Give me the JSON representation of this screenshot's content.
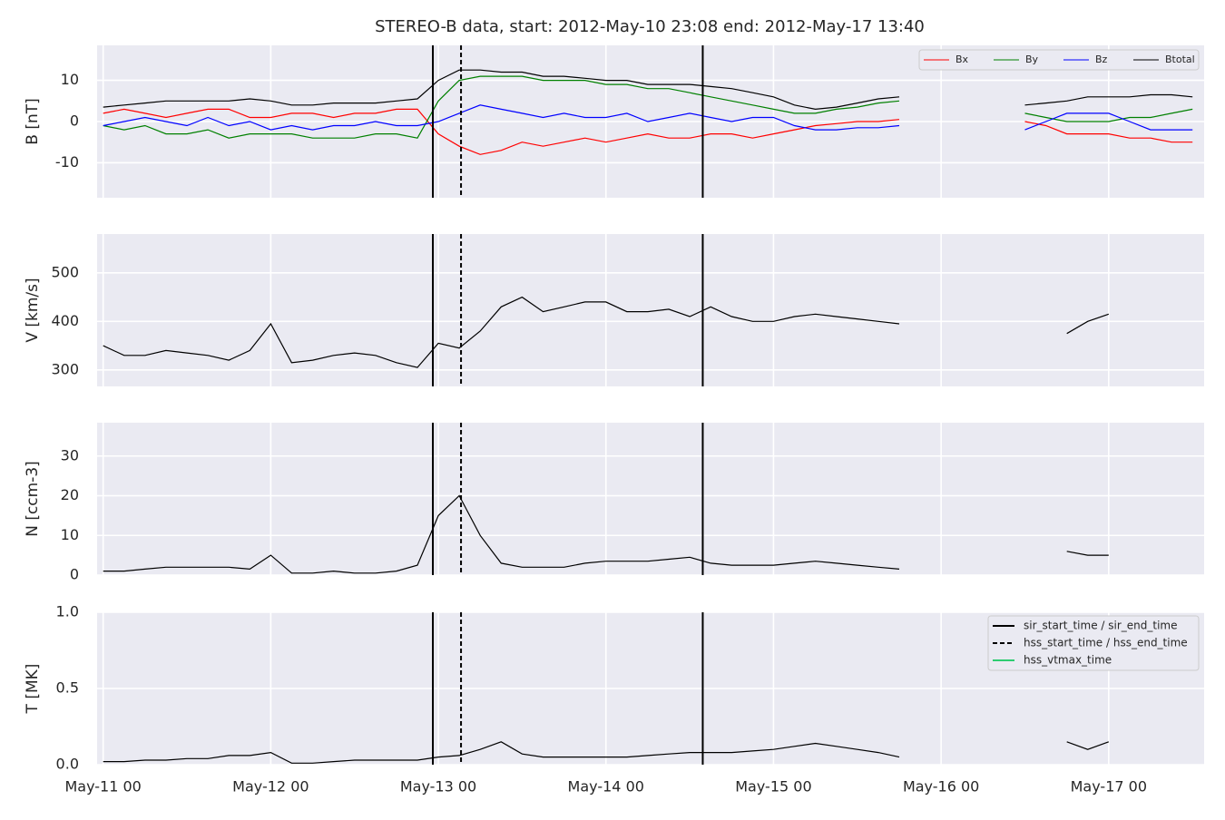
{
  "title": "STEREO-B data, start: 2012-May-10 23:08  end: 2012-May-17 13:40",
  "chart_data": [
    {
      "type": "line",
      "ylabel": "B [nT]",
      "xlim": [
        "2012-05-10T23:08",
        "2012-05-17T13:40"
      ],
      "ylim": [
        -18.5,
        18.5
      ],
      "yticks": [
        -10,
        0,
        10
      ],
      "grid": true,
      "legend": "upper right",
      "xticks": [
        "2012-05-11T00:00",
        "2012-05-12T00:00",
        "2012-05-13T00:00",
        "2012-05-14T00:00",
        "2012-05-15T00:00",
        "2012-05-16T00:00",
        "2012-05-17T00:00"
      ],
      "x": [
        "2012-05-11T00:00",
        "2012-05-11T03:00",
        "2012-05-11T06:00",
        "2012-05-11T09:00",
        "2012-05-11T12:00",
        "2012-05-11T15:00",
        "2012-05-11T18:00",
        "2012-05-11T21:00",
        "2012-05-12T00:00",
        "2012-05-12T03:00",
        "2012-05-12T06:00",
        "2012-05-12T09:00",
        "2012-05-12T12:00",
        "2012-05-12T15:00",
        "2012-05-12T18:00",
        "2012-05-12T21:00",
        "2012-05-13T00:00",
        "2012-05-13T03:00",
        "2012-05-13T06:00",
        "2012-05-13T09:00",
        "2012-05-13T12:00",
        "2012-05-13T15:00",
        "2012-05-13T18:00",
        "2012-05-13T21:00",
        "2012-05-14T00:00",
        "2012-05-14T03:00",
        "2012-05-14T06:00",
        "2012-05-14T09:00",
        "2012-05-14T12:00",
        "2012-05-14T15:00",
        "2012-05-14T18:00",
        "2012-05-14T21:00",
        "2012-05-15T00:00",
        "2012-05-15T03:00",
        "2012-05-15T06:00",
        "2012-05-15T09:00",
        "2012-05-15T12:00",
        "2012-05-15T15:00",
        "2012-05-15T18:00",
        "2012-05-15T21:00",
        "2012-05-16T00:00",
        "2012-05-16T03:00",
        "2012-05-16T06:00",
        "2012-05-16T09:00",
        "2012-05-16T12:00",
        "2012-05-16T15:00",
        "2012-05-16T18:00",
        "2012-05-16T21:00",
        "2012-05-17T00:00",
        "2012-05-17T03:00",
        "2012-05-17T06:00",
        "2012-05-17T09:00",
        "2012-05-17T12:00"
      ],
      "series": [
        {
          "name": "Bx",
          "color": "#ff0000",
          "values": [
            2,
            3,
            2,
            1,
            2,
            3,
            3,
            1,
            1,
            2,
            2,
            1,
            2,
            2,
            3,
            3,
            -3,
            -6,
            -8,
            -7,
            -5,
            -6,
            -5,
            -4,
            -5,
            -4,
            -3,
            -4,
            -4,
            -3,
            -3,
            -4,
            -3,
            -2,
            -1,
            -0.5,
            0,
            0,
            0.5,
            null,
            null,
            null,
            null,
            null,
            0,
            -1,
            -3,
            -3,
            -3,
            -4,
            -4,
            -5,
            -5
          ]
        },
        {
          "name": "By",
          "color": "#008000",
          "values": [
            -1,
            -2,
            -1,
            -3,
            -3,
            -2,
            -4,
            -3,
            -3,
            -3,
            -4,
            -4,
            -4,
            -3,
            -3,
            -4,
            5,
            10,
            11,
            11,
            11,
            10,
            10,
            10,
            9,
            9,
            8,
            8,
            7,
            6,
            5,
            4,
            3,
            2,
            2,
            3,
            3.5,
            4.5,
            5,
            null,
            null,
            null,
            null,
            null,
            2,
            1,
            0,
            0,
            0,
            1,
            1,
            2,
            3
          ]
        },
        {
          "name": "Bz",
          "color": "#0000ff",
          "values": [
            -1,
            0,
            1,
            0,
            -1,
            1,
            -1,
            0,
            -2,
            -1,
            -2,
            -1,
            -1,
            0,
            -1,
            -1,
            0,
            2,
            4,
            3,
            2,
            1,
            2,
            1,
            1,
            2,
            0,
            1,
            2,
            1,
            0,
            1,
            1,
            -1,
            -2,
            -2,
            -1.5,
            -1.5,
            -1,
            null,
            null,
            null,
            null,
            null,
            -2,
            0,
            2,
            2,
            2,
            0,
            -2,
            -2,
            -2
          ]
        },
        {
          "name": "Btotal",
          "color": "#000000",
          "values": [
            3.5,
            4,
            4.5,
            5,
            5,
            5,
            5,
            5.5,
            5,
            4,
            4,
            4.5,
            4.5,
            4.5,
            5,
            5.5,
            10,
            12.5,
            12.5,
            12,
            12,
            11,
            11,
            10.5,
            10,
            10,
            9,
            9,
            9,
            8.5,
            8,
            7,
            6,
            4,
            3,
            3.5,
            4.5,
            5.5,
            6,
            null,
            null,
            null,
            null,
            null,
            4,
            4.5,
            5,
            6,
            6,
            6,
            6.5,
            6.5,
            6
          ]
        }
      ]
    },
    {
      "type": "line",
      "ylabel": "V [km/s]",
      "xlim": [
        "2012-05-10T23:08",
        "2012-05-17T13:40"
      ],
      "ylim": [
        266,
        580
      ],
      "yticks": [
        300,
        400,
        500
      ],
      "grid": true,
      "xticks": [
        "2012-05-11T00:00",
        "2012-05-12T00:00",
        "2012-05-13T00:00",
        "2012-05-14T00:00",
        "2012-05-15T00:00",
        "2012-05-16T00:00",
        "2012-05-17T00:00"
      ],
      "x": [
        "2012-05-11T00:00",
        "2012-05-11T03:00",
        "2012-05-11T06:00",
        "2012-05-11T09:00",
        "2012-05-11T12:00",
        "2012-05-11T15:00",
        "2012-05-11T18:00",
        "2012-05-11T21:00",
        "2012-05-12T00:00",
        "2012-05-12T03:00",
        "2012-05-12T06:00",
        "2012-05-12T09:00",
        "2012-05-12T12:00",
        "2012-05-12T15:00",
        "2012-05-12T18:00",
        "2012-05-12T21:00",
        "2012-05-13T00:00",
        "2012-05-13T03:00",
        "2012-05-13T06:00",
        "2012-05-13T09:00",
        "2012-05-13T12:00",
        "2012-05-13T15:00",
        "2012-05-13T18:00",
        "2012-05-13T21:00",
        "2012-05-14T00:00",
        "2012-05-14T03:00",
        "2012-05-14T06:00",
        "2012-05-14T09:00",
        "2012-05-14T12:00",
        "2012-05-14T15:00",
        "2012-05-14T18:00",
        "2012-05-14T21:00",
        "2012-05-15T00:00",
        "2012-05-15T03:00",
        "2012-05-15T06:00",
        "2012-05-15T09:00",
        "2012-05-15T12:00",
        "2012-05-15T15:00",
        "2012-05-15T18:00",
        "2012-05-15T21:00",
        "2012-05-16T00:00",
        "2012-05-16T03:00",
        "2012-05-16T06:00",
        "2012-05-16T09:00",
        "2012-05-16T12:00",
        "2012-05-16T15:00",
        "2012-05-16T18:00",
        "2012-05-16T21:00",
        "2012-05-17T00:00",
        "2012-05-17T03:00",
        "2012-05-17T06:00",
        "2012-05-17T09:00",
        "2012-05-17T12:00"
      ],
      "series": [
        {
          "color": "#000000",
          "values": [
            350,
            330,
            330,
            340,
            335,
            330,
            320,
            340,
            395,
            315,
            320,
            330,
            335,
            330,
            315,
            305,
            355,
            345,
            380,
            430,
            450,
            420,
            430,
            440,
            440,
            420,
            420,
            425,
            410,
            430,
            410,
            400,
            400,
            410,
            415,
            410,
            405,
            400,
            395,
            null,
            null,
            null,
            null,
            null,
            null,
            null,
            375,
            400,
            415,
            null,
            null,
            null,
            null
          ]
        }
      ]
    },
    {
      "type": "line",
      "ylabel": "N [ccm-3]",
      "xlim": [
        "2012-05-10T23:08",
        "2012-05-17T13:40"
      ],
      "ylim": [
        0,
        38.4
      ],
      "yticks": [
        0,
        10,
        20,
        30
      ],
      "grid": true,
      "xticks": [
        "2012-05-11T00:00",
        "2012-05-12T00:00",
        "2012-05-13T00:00",
        "2012-05-14T00:00",
        "2012-05-15T00:00",
        "2012-05-16T00:00",
        "2012-05-17T00:00"
      ],
      "x": [
        "2012-05-11T00:00",
        "2012-05-11T03:00",
        "2012-05-11T06:00",
        "2012-05-11T09:00",
        "2012-05-11T12:00",
        "2012-05-11T15:00",
        "2012-05-11T18:00",
        "2012-05-11T21:00",
        "2012-05-12T00:00",
        "2012-05-12T03:00",
        "2012-05-12T06:00",
        "2012-05-12T09:00",
        "2012-05-12T12:00",
        "2012-05-12T15:00",
        "2012-05-12T18:00",
        "2012-05-12T21:00",
        "2012-05-13T00:00",
        "2012-05-13T03:00",
        "2012-05-13T06:00",
        "2012-05-13T09:00",
        "2012-05-13T12:00",
        "2012-05-13T15:00",
        "2012-05-13T18:00",
        "2012-05-13T21:00",
        "2012-05-14T00:00",
        "2012-05-14T03:00",
        "2012-05-14T06:00",
        "2012-05-14T09:00",
        "2012-05-14T12:00",
        "2012-05-14T15:00",
        "2012-05-14T18:00",
        "2012-05-14T21:00",
        "2012-05-15T00:00",
        "2012-05-15T03:00",
        "2012-05-15T06:00",
        "2012-05-15T09:00",
        "2012-05-15T12:00",
        "2012-05-15T15:00",
        "2012-05-15T18:00",
        "2012-05-15T21:00",
        "2012-05-16T00:00",
        "2012-05-16T03:00",
        "2012-05-16T06:00",
        "2012-05-16T09:00",
        "2012-05-16T12:00",
        "2012-05-16T15:00",
        "2012-05-16T18:00",
        "2012-05-16T21:00",
        "2012-05-17T00:00",
        "2012-05-17T03:00",
        "2012-05-17T06:00",
        "2012-05-17T09:00",
        "2012-05-17T12:00"
      ],
      "series": [
        {
          "color": "#000000",
          "values": [
            1,
            1,
            1.5,
            2,
            2,
            2,
            2,
            1.5,
            5,
            0.5,
            0.5,
            1,
            0.5,
            0.5,
            1,
            2.5,
            15,
            20,
            10,
            3,
            2,
            2,
            2,
            3,
            3.5,
            3.5,
            3.5,
            4,
            4.5,
            3,
            2.5,
            2.5,
            2.5,
            3,
            3.5,
            3,
            2.5,
            2,
            1.5,
            null,
            null,
            null,
            null,
            null,
            null,
            null,
            6,
            5,
            5,
            null,
            null,
            null,
            null
          ]
        }
      ]
    },
    {
      "type": "line",
      "ylabel": "T [MK]",
      "xlim": [
        "2012-05-10T23:08",
        "2012-05-17T13:40"
      ],
      "ylim": [
        0,
        1.0
      ],
      "yticks": [
        {
          "value": 0,
          "label": "0.0"
        },
        {
          "value": 0.5,
          "label": "0.5"
        },
        {
          "value": 1,
          "label": "1.0"
        }
      ],
      "grid": true,
      "legend": "upper right",
      "xticks": [
        {
          "value": "2012-05-11T00:00",
          "label": "May-11 00"
        },
        {
          "value": "2012-05-12T00:00",
          "label": "May-12 00"
        },
        {
          "value": "2012-05-13T00:00",
          "label": "May-13 00"
        },
        {
          "value": "2012-05-14T00:00",
          "label": "May-14 00"
        },
        {
          "value": "2012-05-15T00:00",
          "label": "May-15 00"
        },
        {
          "value": "2012-05-16T00:00",
          "label": "May-16 00"
        },
        {
          "value": "2012-05-17T00:00",
          "label": "May-17 00"
        }
      ],
      "x": [
        "2012-05-11T00:00",
        "2012-05-11T03:00",
        "2012-05-11T06:00",
        "2012-05-11T09:00",
        "2012-05-11T12:00",
        "2012-05-11T15:00",
        "2012-05-11T18:00",
        "2012-05-11T21:00",
        "2012-05-12T00:00",
        "2012-05-12T03:00",
        "2012-05-12T06:00",
        "2012-05-12T09:00",
        "2012-05-12T12:00",
        "2012-05-12T15:00",
        "2012-05-12T18:00",
        "2012-05-12T21:00",
        "2012-05-13T00:00",
        "2012-05-13T03:00",
        "2012-05-13T06:00",
        "2012-05-13T09:00",
        "2012-05-13T12:00",
        "2012-05-13T15:00",
        "2012-05-13T18:00",
        "2012-05-13T21:00",
        "2012-05-14T00:00",
        "2012-05-14T03:00",
        "2012-05-14T06:00",
        "2012-05-14T09:00",
        "2012-05-14T12:00",
        "2012-05-14T15:00",
        "2012-05-14T18:00",
        "2012-05-14T21:00",
        "2012-05-15T00:00",
        "2012-05-15T03:00",
        "2012-05-15T06:00",
        "2012-05-15T09:00",
        "2012-05-15T12:00",
        "2012-05-15T15:00",
        "2012-05-15T18:00",
        "2012-05-15T21:00",
        "2012-05-16T00:00",
        "2012-05-16T03:00",
        "2012-05-16T06:00",
        "2012-05-16T09:00",
        "2012-05-16T12:00",
        "2012-05-16T15:00",
        "2012-05-16T18:00",
        "2012-05-16T21:00",
        "2012-05-17T00:00",
        "2012-05-17T03:00",
        "2012-05-17T06:00",
        "2012-05-17T09:00",
        "2012-05-17T12:00"
      ],
      "series": [
        {
          "color": "#000000",
          "values": [
            0.02,
            0.02,
            0.03,
            0.03,
            0.04,
            0.04,
            0.06,
            0.06,
            0.08,
            0.01,
            0.01,
            0.02,
            0.03,
            0.03,
            0.03,
            0.03,
            0.05,
            0.06,
            0.1,
            0.15,
            0.07,
            0.05,
            0.05,
            0.05,
            0.05,
            0.05,
            0.06,
            0.07,
            0.08,
            0.08,
            0.08,
            0.09,
            0.1,
            0.12,
            0.14,
            0.12,
            0.1,
            0.08,
            0.05,
            null,
            null,
            null,
            null,
            null,
            null,
            null,
            0.15,
            0.1,
            0.15,
            null,
            null,
            null,
            null
          ]
        }
      ],
      "events": [
        {
          "name": "sir_start_time / sir_end_time",
          "color": "#000000",
          "style": "solid",
          "times": [
            "2012-05-12T23:13",
            "2012-05-14T13:52"
          ]
        },
        {
          "name": "hss_start_time / hss_end_time",
          "color": "#000000",
          "style": "dashed",
          "times": [
            "2012-05-13T03:15"
          ]
        },
        {
          "name": "hss_vtmax_time",
          "color": "#2ecc71",
          "style": "solid",
          "times": []
        }
      ]
    }
  ]
}
